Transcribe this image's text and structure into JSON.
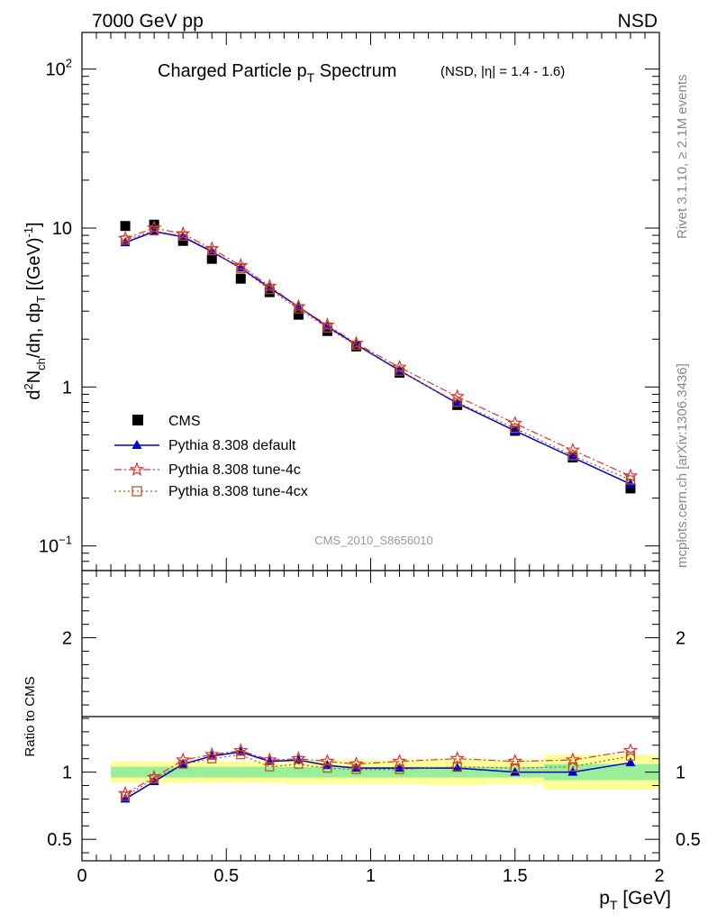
{
  "header": {
    "energy_label": "7000 GeV pp",
    "process_label": "NSD"
  },
  "side_labels": {
    "rivet": "Rivet 3.1.10, ≥ 2.1M events",
    "source": "mcplots.cern.ch [arXiv:1306.3436]"
  },
  "watermark": "CMS_2010_S8656010",
  "chart_data": {
    "type": "line",
    "title": {
      "main_prefix": "Charged Particle p",
      "main_sub": "T",
      "main_suffix": " Spectrum",
      "qualifier": "(NSD, |η| = 1.4 - 1.6)"
    },
    "main_panel": {
      "y_scale": "log",
      "ylim": [
        0.07,
        170
      ],
      "ylabel_parts": [
        "d",
        "2",
        "N",
        "ch",
        "/dη, dp",
        "T",
        " [(GeV)",
        "-1",
        "]"
      ],
      "y_tick_labels": [
        {
          "value": 0.1,
          "base": "10",
          "exp": "−1"
        },
        {
          "value": 1,
          "base": "1",
          "exp": ""
        },
        {
          "value": 10,
          "base": "10",
          "exp": ""
        },
        {
          "value": 100,
          "base": "10",
          "exp": "2"
        }
      ]
    },
    "ratio_panel": {
      "ylabel": "Ratio to CMS",
      "ylim": [
        0.34,
        2.5
      ],
      "y_tick_labels": [
        "0.5",
        "1",
        "2"
      ],
      "reference_line": 1
    },
    "x_axis": {
      "label_main": "p",
      "label_sub": "T",
      "label_unit": " [GeV]",
      "xlim": [
        0,
        2
      ],
      "tick_labels": [
        "0",
        "0.5",
        "1",
        "1.5",
        "2"
      ]
    },
    "x": [
      0.15,
      0.25,
      0.35,
      0.45,
      0.55,
      0.65,
      0.75,
      0.85,
      0.95,
      1.1,
      1.3,
      1.5,
      1.7,
      1.9
    ],
    "bin_edges": [
      0.1,
      0.2,
      0.3,
      0.4,
      0.5,
      0.6,
      0.7,
      0.8,
      0.9,
      1.0,
      1.2,
      1.4,
      1.6,
      1.8,
      2.0
    ],
    "uncertainty_bands": {
      "stat_low": [
        0.96,
        0.96,
        0.96,
        0.96,
        0.96,
        0.96,
        0.96,
        0.96,
        0.96,
        0.96,
        0.96,
        0.96,
        0.94,
        0.94
      ],
      "stat_high": [
        1.04,
        1.04,
        1.04,
        1.04,
        1.04,
        1.04,
        1.04,
        1.04,
        1.04,
        1.04,
        1.04,
        1.04,
        1.06,
        1.06
      ],
      "syst_low": [
        0.92,
        0.92,
        0.92,
        0.92,
        0.92,
        0.92,
        0.91,
        0.91,
        0.91,
        0.91,
        0.9,
        0.91,
        0.87,
        0.87
      ],
      "syst_high": [
        1.08,
        1.08,
        1.08,
        1.08,
        1.08,
        1.08,
        1.09,
        1.09,
        1.09,
        1.09,
        1.1,
        1.09,
        1.13,
        1.13
      ]
    },
    "series": [
      {
        "name": "CMS",
        "style": "data",
        "color": "#000000",
        "values": [
          10.3,
          10.5,
          8.3,
          6.4,
          4.8,
          3.95,
          2.85,
          2.25,
          1.8,
          1.23,
          0.77,
          0.53,
          0.36,
          0.23
        ],
        "ratio": [
          1.0,
          1.0,
          1.0,
          1.0,
          1.0,
          1.0,
          1.0,
          1.0,
          1.0,
          1.0,
          1.0,
          1.0,
          1.0,
          1.0
        ]
      },
      {
        "name": "Pythia 8.308 default",
        "style": "solid",
        "marker": "triangle",
        "color": "#0000cc",
        "values": [
          8.1,
          9.5,
          8.8,
          7.1,
          5.6,
          4.2,
          3.2,
          2.4,
          1.85,
          1.27,
          0.79,
          0.53,
          0.36,
          0.245
        ],
        "ratio": [
          0.8,
          0.93,
          1.06,
          1.12,
          1.15,
          1.08,
          1.09,
          1.05,
          1.03,
          1.03,
          1.03,
          1.0,
          1.0,
          1.07
        ]
      },
      {
        "name": "Pythia 8.308 tune-4c",
        "style": "dashdot",
        "marker": "star",
        "color": "#dd3333",
        "values": [
          8.6,
          10.0,
          9.2,
          7.4,
          5.8,
          4.3,
          3.2,
          2.45,
          1.88,
          1.33,
          0.87,
          0.59,
          0.4,
          0.275
        ],
        "ratio": [
          0.84,
          0.96,
          1.09,
          1.13,
          1.16,
          1.09,
          1.1,
          1.08,
          1.06,
          1.08,
          1.1,
          1.08,
          1.09,
          1.16
        ]
      },
      {
        "name": "Pythia 8.308 tune-4cx",
        "style": "dotted",
        "marker": "open-square",
        "color": "#b8501a",
        "values": [
          8.4,
          9.6,
          8.9,
          7.2,
          5.55,
          4.1,
          3.1,
          2.35,
          1.83,
          1.26,
          0.8,
          0.55,
          0.37,
          0.26
        ],
        "ratio": [
          0.82,
          0.95,
          1.06,
          1.1,
          1.13,
          1.04,
          1.06,
          1.03,
          1.02,
          1.02,
          1.04,
          1.03,
          1.04,
          1.12
        ]
      }
    ]
  }
}
